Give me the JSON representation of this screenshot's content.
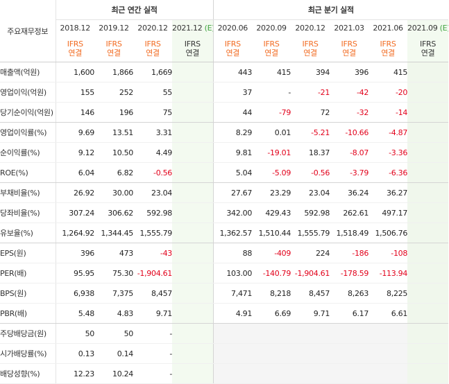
{
  "header": {
    "row_label": "주요재무정보",
    "annual_group": "최근 연간 실적",
    "quarterly_group": "최근 분기 실적",
    "ifrs_line1": "IFRS",
    "ifrs_line2": "연결",
    "annual_periods": [
      "2018.12",
      "2019.12",
      "2020.12",
      "2021.12"
    ],
    "quarterly_periods": [
      "2020.06",
      "2020.09",
      "2020.12",
      "2021.03",
      "2021.06",
      "2021.09"
    ],
    "estimate_mark": "(E)"
  },
  "rows": [
    {
      "label": "매출액(억원)",
      "annual": [
        "1,600",
        "1,866",
        "1,669",
        ""
      ],
      "quarterly": [
        "443",
        "415",
        "394",
        "396",
        "415",
        ""
      ]
    },
    {
      "label": "영업이익(억원)",
      "annual": [
        "155",
        "252",
        "55",
        ""
      ],
      "quarterly": [
        "37",
        "-",
        "-21",
        "-42",
        "-20",
        ""
      ]
    },
    {
      "label": "당기순이익(억원)",
      "annual": [
        "146",
        "196",
        "75",
        ""
      ],
      "quarterly": [
        "44",
        "-79",
        "72",
        "-32",
        "-14",
        ""
      ]
    },
    {
      "label": "영업이익률(%)",
      "annual": [
        "9.69",
        "13.51",
        "3.31",
        ""
      ],
      "quarterly": [
        "8.29",
        "0.01",
        "-5.21",
        "-10.66",
        "-4.87",
        ""
      ]
    },
    {
      "label": "순이익률(%)",
      "annual": [
        "9.12",
        "10.50",
        "4.49",
        ""
      ],
      "quarterly": [
        "9.81",
        "-19.01",
        "18.37",
        "-8.07",
        "-3.36",
        ""
      ]
    },
    {
      "label": "ROE(%)",
      "annual": [
        "6.04",
        "6.82",
        "-0.56",
        ""
      ],
      "quarterly": [
        "5.04",
        "-5.09",
        "-0.56",
        "-3.79",
        "-6.36",
        ""
      ]
    },
    {
      "label": "부채비율(%)",
      "annual": [
        "26.92",
        "30.00",
        "23.04",
        ""
      ],
      "quarterly": [
        "27.67",
        "23.29",
        "23.04",
        "36.24",
        "36.27",
        ""
      ]
    },
    {
      "label": "당좌비율(%)",
      "annual": [
        "307.24",
        "306.62",
        "592.98",
        ""
      ],
      "quarterly": [
        "342.00",
        "429.43",
        "592.98",
        "262.61",
        "497.17",
        ""
      ]
    },
    {
      "label": "유보율(%)",
      "annual": [
        "1,264.92",
        "1,344.45",
        "1,555.79",
        ""
      ],
      "quarterly": [
        "1,362.57",
        "1,510.44",
        "1,555.79",
        "1,518.49",
        "1,506.76",
        ""
      ]
    },
    {
      "label": "EPS(원)",
      "annual": [
        "396",
        "473",
        "-43",
        ""
      ],
      "quarterly": [
        "88",
        "-409",
        "224",
        "-186",
        "-108",
        ""
      ]
    },
    {
      "label": "PER(배)",
      "annual": [
        "95.95",
        "75.30",
        "-1,904.61",
        ""
      ],
      "quarterly": [
        "103.00",
        "-140.79",
        "-1,904.61",
        "-178.59",
        "-113.94",
        ""
      ]
    },
    {
      "label": "BPS(원)",
      "annual": [
        "6,938",
        "7,375",
        "8,457",
        ""
      ],
      "quarterly": [
        "7,471",
        "8,218",
        "8,457",
        "8,263",
        "8,225",
        ""
      ]
    },
    {
      "label": "PBR(배)",
      "annual": [
        "5.48",
        "4.83",
        "9.71",
        ""
      ],
      "quarterly": [
        "4.91",
        "6.69",
        "9.71",
        "6.17",
        "6.61",
        ""
      ]
    },
    {
      "label": "주당배당금(원)",
      "annual": [
        "50",
        "50",
        "-",
        ""
      ],
      "quarterly": [
        "",
        "",
        "",
        "",
        "",
        ""
      ]
    },
    {
      "label": "시가배당률(%)",
      "annual": [
        "0.13",
        "0.14",
        "-",
        ""
      ],
      "quarterly": [
        "",
        "",
        "",
        "",
        "",
        ""
      ]
    },
    {
      "label": "배당성향(%)",
      "annual": [
        "12.23",
        "10.24",
        "-",
        ""
      ],
      "quarterly": [
        "",
        "",
        "",
        "",
        "",
        ""
      ]
    }
  ],
  "colors": {
    "negative": "#e2001a",
    "ifrs": "#f26b21",
    "estimate_bg": "#f3faf0",
    "estimate_mark": "#3fa33f"
  }
}
